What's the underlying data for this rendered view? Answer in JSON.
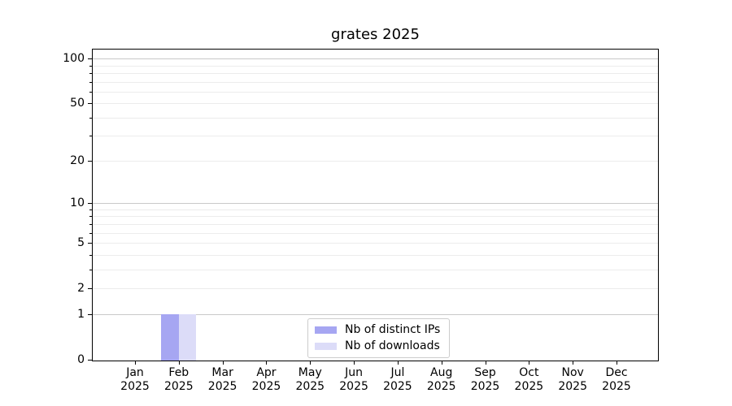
{
  "chart_data": {
    "type": "bar",
    "title": "grates 2025",
    "categories": [
      "Jan 2025",
      "Feb 2025",
      "Mar 2025",
      "Apr 2025",
      "May 2025",
      "Jun 2025",
      "Jul 2025",
      "Aug 2025",
      "Sep 2025",
      "Oct 2025",
      "Nov 2025",
      "Dec 2025"
    ],
    "series": [
      {
        "name": "Nb of distinct IPs",
        "color": "#a6a6f2",
        "values": [
          0,
          1,
          0,
          0,
          0,
          0,
          0,
          0,
          0,
          0,
          0,
          0
        ]
      },
      {
        "name": "Nb of downloads",
        "color": "#dcdcf8",
        "values": [
          0,
          1,
          0,
          0,
          0,
          0,
          0,
          0,
          0,
          0,
          0,
          0
        ]
      }
    ],
    "xlabel": "",
    "ylabel": "",
    "yscale": "log1p",
    "ylim": [
      0,
      115
    ],
    "yticks_labeled": [
      0,
      1,
      2,
      5,
      10,
      20,
      50,
      100
    ],
    "yticks_minor": [
      3,
      4,
      6,
      7,
      8,
      9,
      30,
      40,
      60,
      70,
      80,
      90
    ],
    "ygrid_major": [
      1,
      10,
      100
    ],
    "ygrid_minor": [
      2,
      3,
      4,
      5,
      6,
      7,
      8,
      9,
      20,
      30,
      40,
      50,
      60,
      70,
      80,
      90
    ],
    "grid": true,
    "legend_position": "lower center"
  },
  "legend": {
    "items": [
      {
        "label": "Nb of distinct IPs",
        "color": "#a6a6f2"
      },
      {
        "label": "Nb of downloads",
        "color": "#dcdcf8"
      }
    ]
  },
  "colors": {
    "bar_distinct_ips": "#a6a6f2",
    "bar_downloads": "#dcdcf8",
    "grid_major": "#c9c9c9",
    "grid_minor": "#ececec",
    "axis": "#000000",
    "legend_border": "#cccccc",
    "background": "#ffffff"
  }
}
